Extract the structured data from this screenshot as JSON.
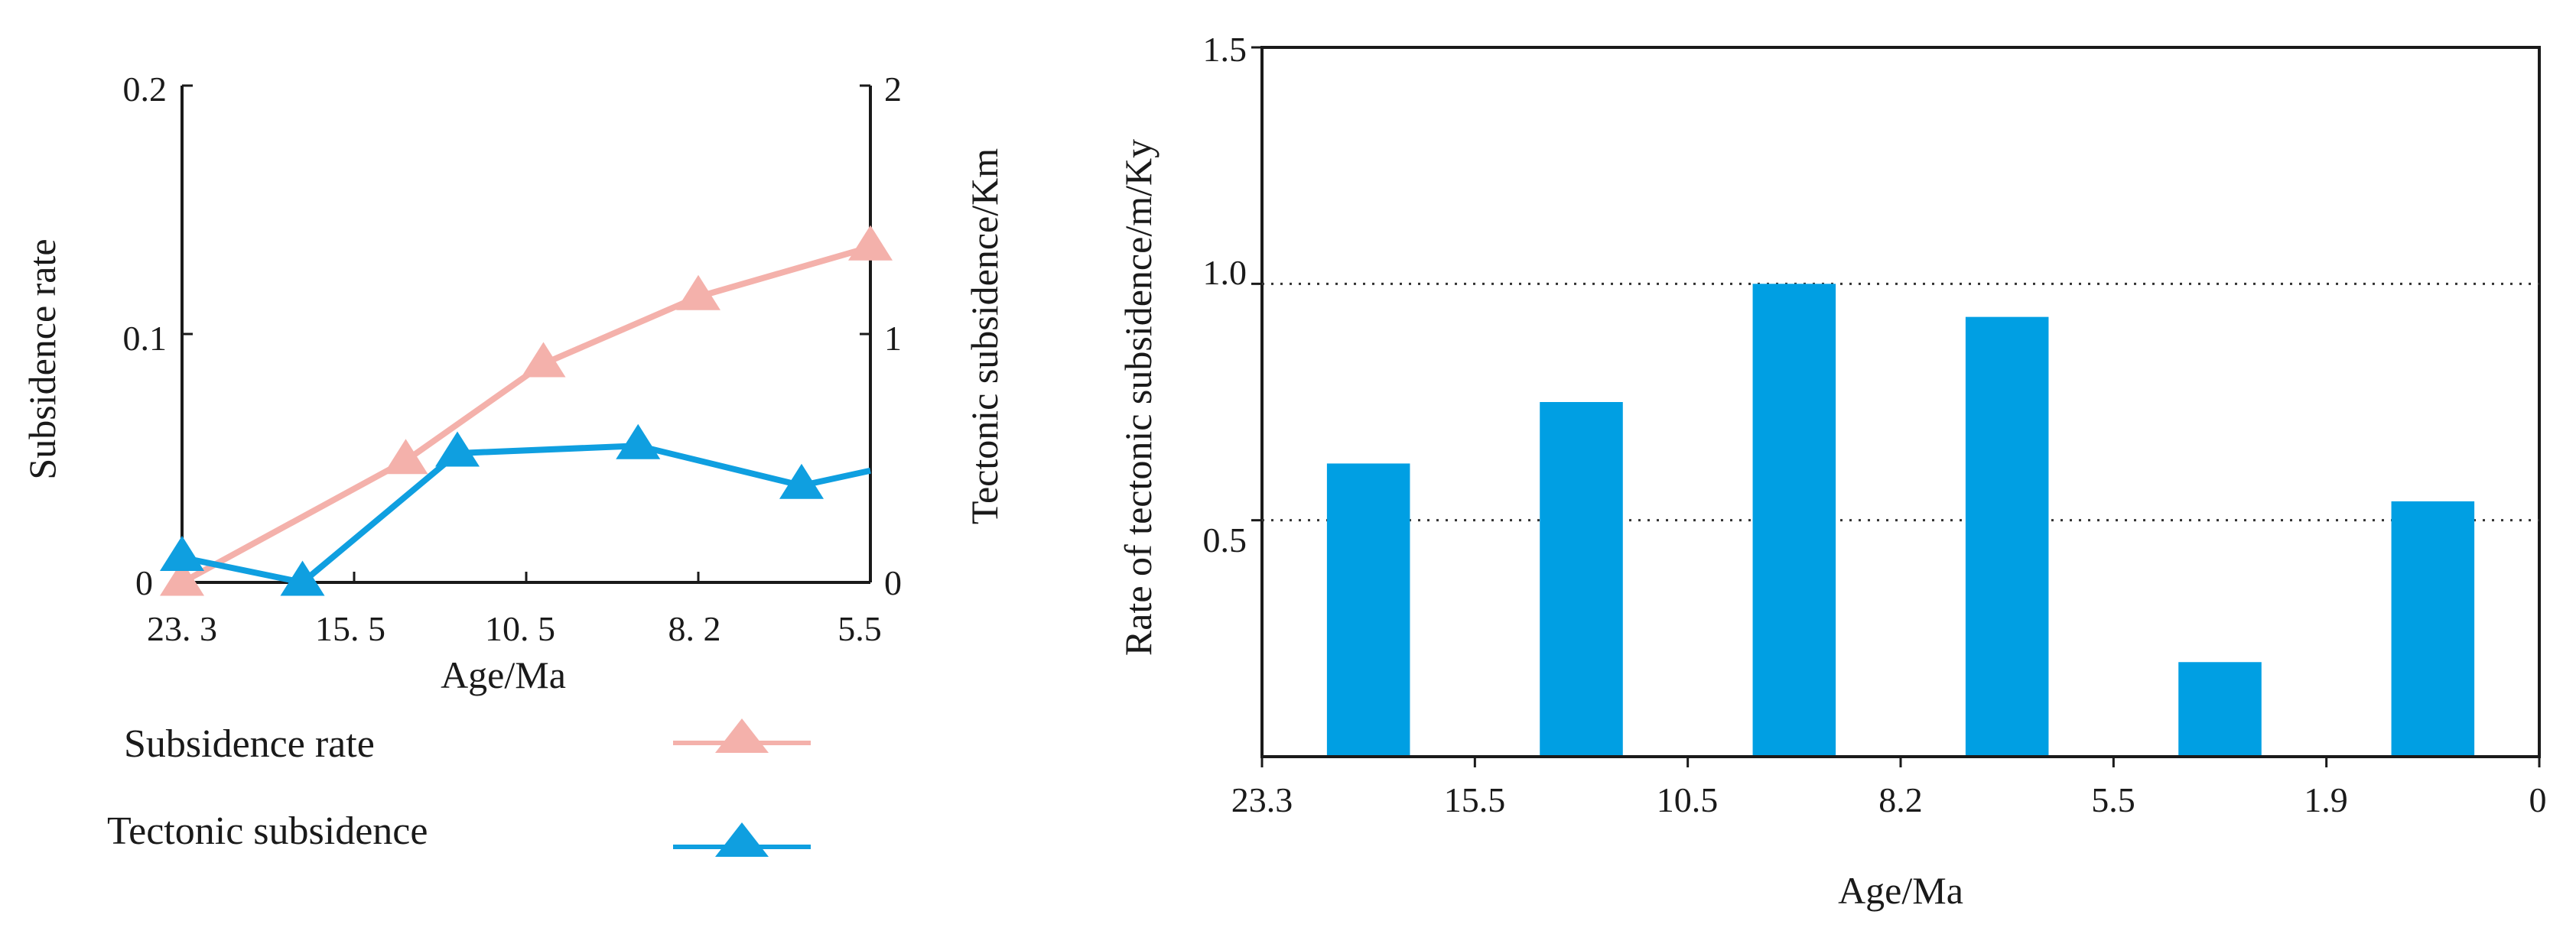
{
  "chart_data": [
    {
      "type": "line",
      "x_categories": [
        "23. 3",
        "15. 5",
        "10. 5",
        "8. 2",
        "5.5"
      ],
      "xlabel": "Age/Ma",
      "ylabel_left": "Subsidence rate",
      "ylabel_right": "Tectonic subsidence/Km",
      "ylim_left": [
        0,
        0.2
      ],
      "ylim_right": [
        0,
        2
      ],
      "yticks_left": [
        "0",
        "0.1",
        "0.2"
      ],
      "yticks_right": [
        "0",
        "1",
        "2"
      ],
      "series": [
        {
          "name": "Subsidence rate",
          "axis": "left",
          "color": "#f4b1ab",
          "marker": "triangle",
          "points": [
            {
              "x": 0.0,
              "y": 0.0
            },
            {
              "x": 1.3,
              "y": 0.049
            },
            {
              "x": 2.1,
              "y": 0.088
            },
            {
              "x": 3.0,
              "y": 0.115
            },
            {
              "x": 4.0,
              "y": 0.135
            }
          ]
        },
        {
          "name": "Tectonic subsidence",
          "axis": "right",
          "color": "#0f9fe0",
          "marker": "triangle",
          "points": [
            {
              "x": 0.0,
              "y": 0.1
            },
            {
              "x": 0.7,
              "y": 0.0
            },
            {
              "x": 1.6,
              "y": 0.52
            },
            {
              "x": 2.65,
              "y": 0.55
            },
            {
              "x": 3.6,
              "y": 0.39
            },
            {
              "x": 4.0,
              "y": 0.45
            }
          ]
        }
      ],
      "legend": [
        {
          "label": "Subsidence rate",
          "color": "#f4b1ab"
        },
        {
          "label": "Tectonic subsidence",
          "color": "#0f9fe0"
        }
      ],
      "legend_position": "bottom"
    },
    {
      "type": "bar",
      "x_tick_labels": [
        "23.3",
        "15.5",
        "10.5",
        "8.2",
        "5.5",
        "1.9",
        "0"
      ],
      "xlabel": "Age/Ma",
      "ylabel": "Rate of tectonic subsidence/m/Ky",
      "ylim": [
        0.0,
        1.5
      ],
      "yticks": [
        "0.5",
        "1.0",
        "1.5"
      ],
      "gridlines": [
        0.5,
        1.0
      ],
      "bar_color": "#009fe3",
      "values": [
        0.62,
        0.75,
        1.0,
        0.93,
        0.2,
        0.54
      ]
    }
  ]
}
